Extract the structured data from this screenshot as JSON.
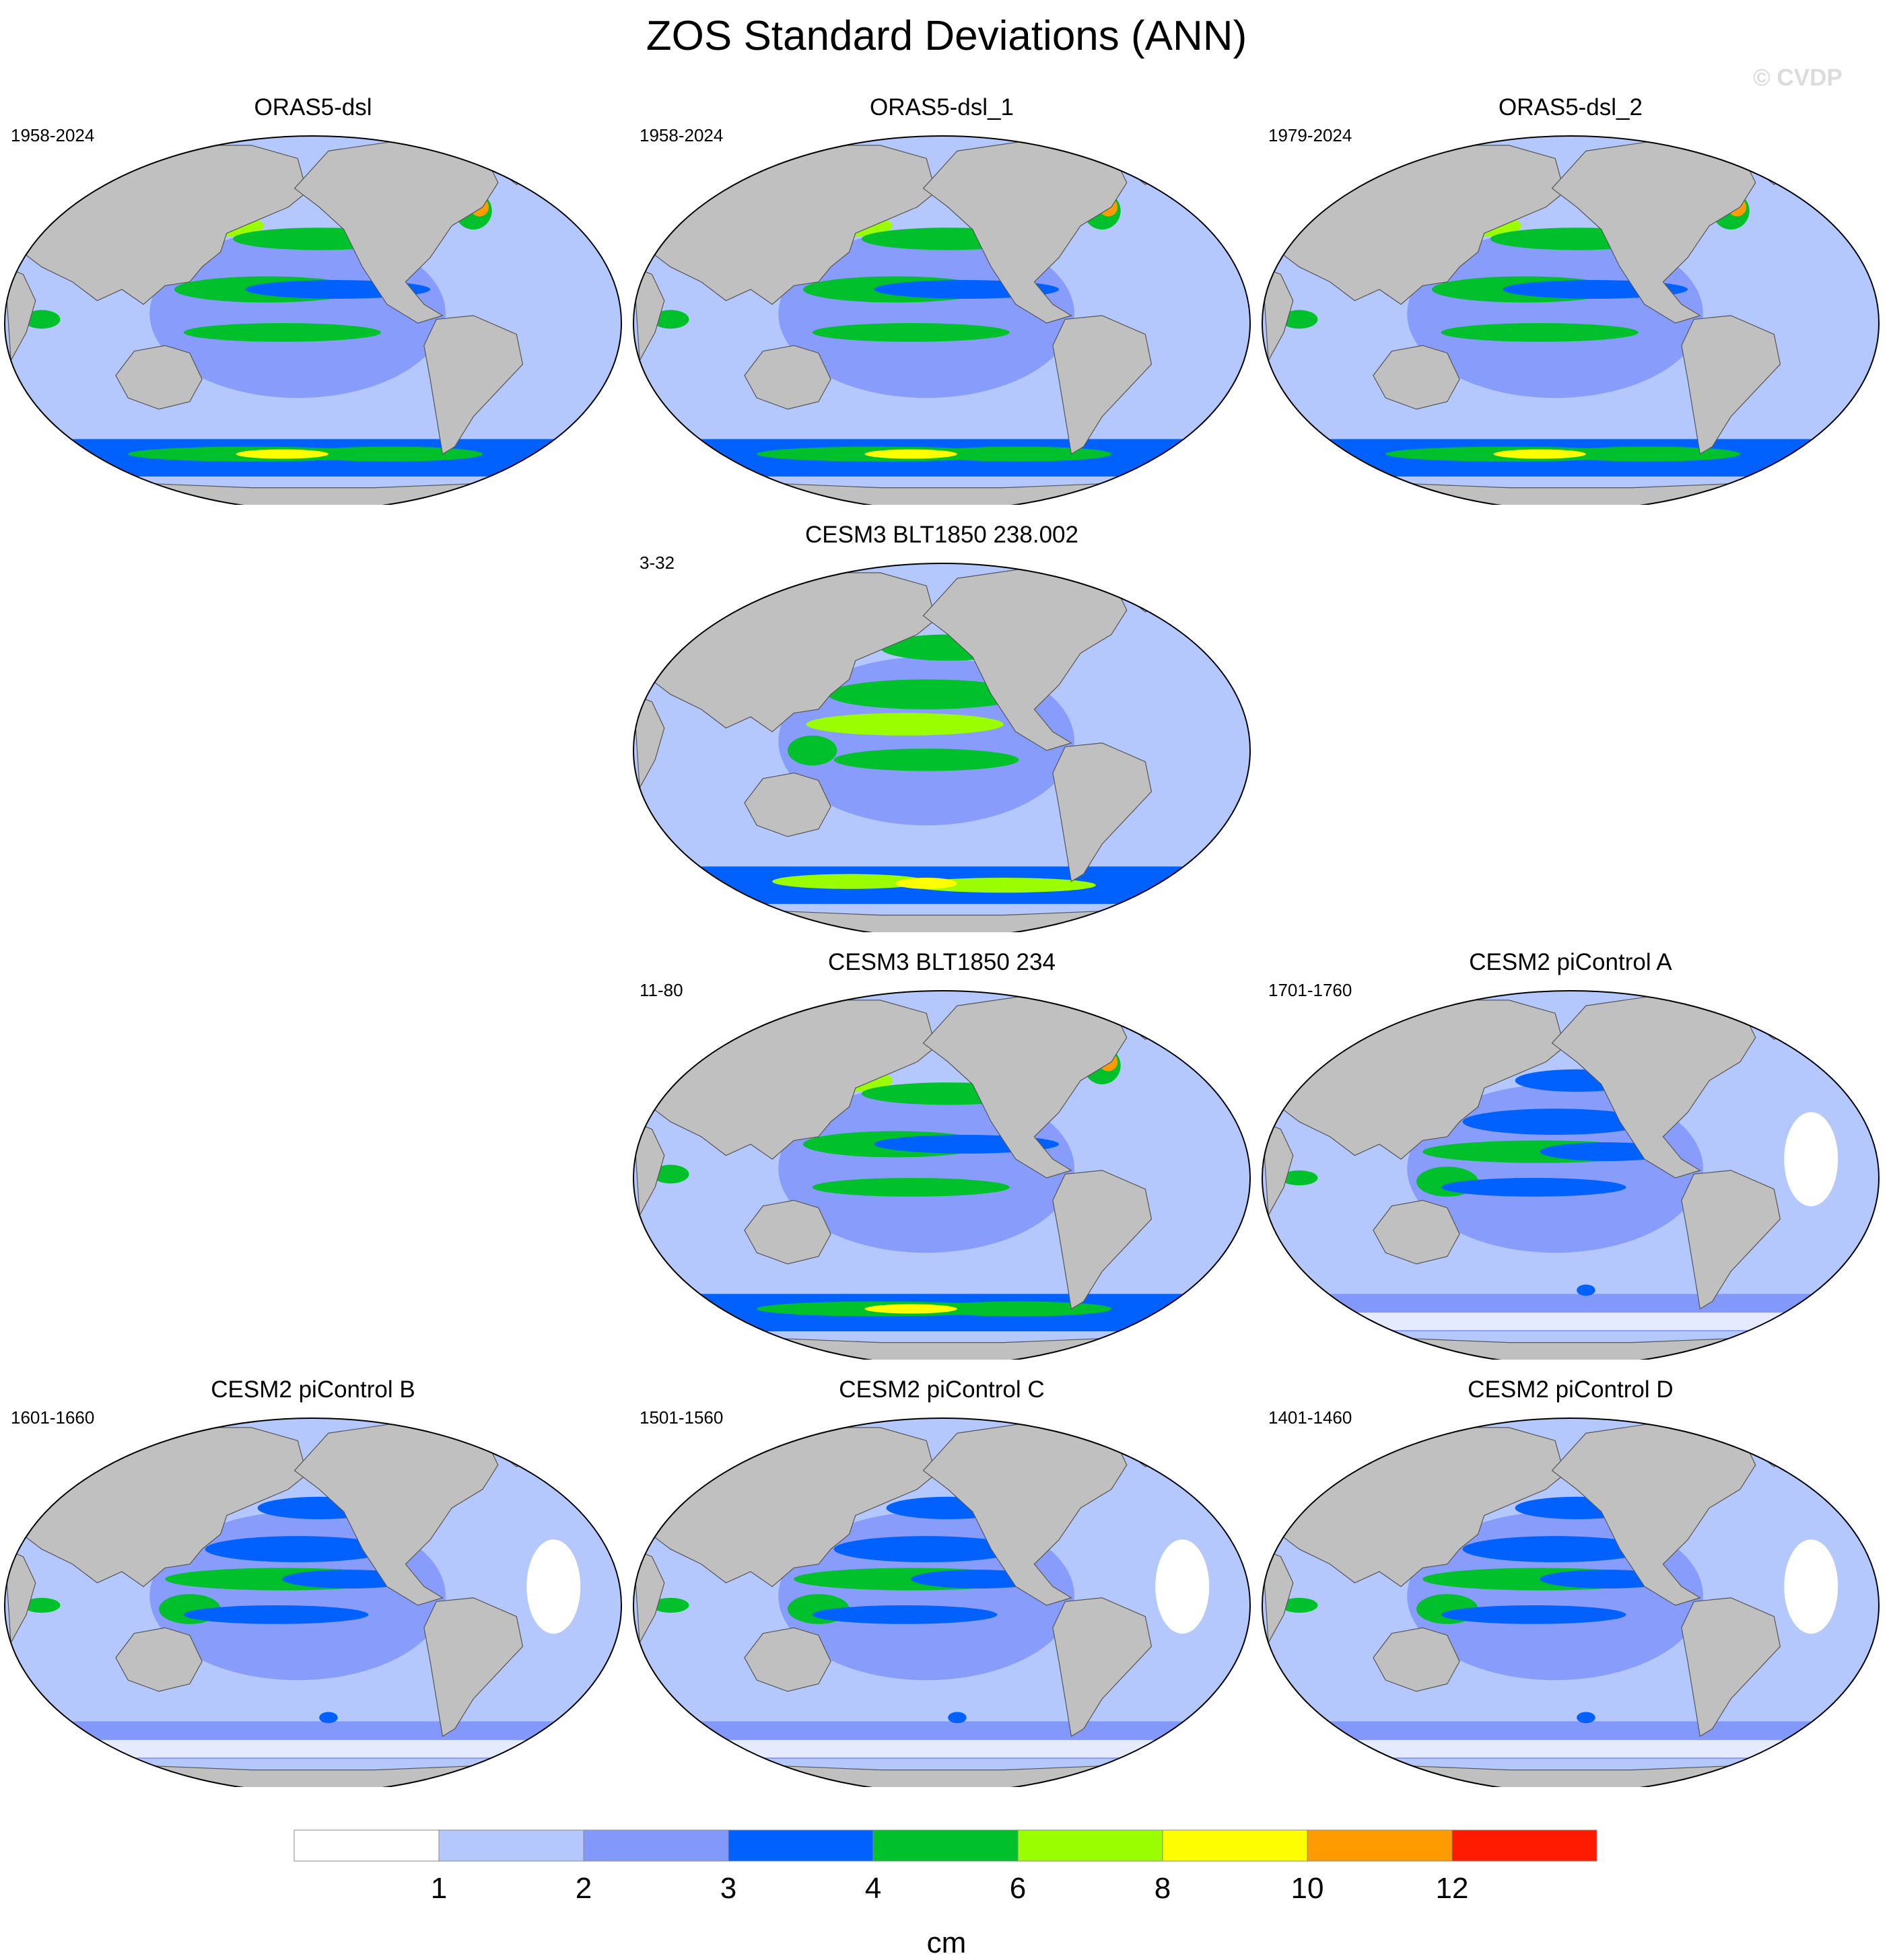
{
  "title": "ZOS Standard Deviations (ANN)",
  "watermark": "© CVDP",
  "panels": [
    {
      "title": "ORAS5-dsl",
      "years": "1958-2024",
      "intensity": 3,
      "wide": true
    },
    {
      "title": "ORAS5-dsl_1",
      "years": "1958-2024",
      "intensity": 3,
      "wide": true
    },
    {
      "title": "ORAS5-dsl_2",
      "years": "1979-2024",
      "intensity": 3,
      "wide": true
    },
    {
      "title": "CESM3 BLT1850 238.002",
      "years": "3-32",
      "intensity": 2,
      "wide": false
    },
    {
      "title": "CESM3 BLT1850 234",
      "years": "11-80",
      "intensity": 3,
      "wide": false
    },
    {
      "title": "CESM2 piControl A",
      "years": "1701-1760",
      "intensity": 1,
      "wide": false
    },
    {
      "title": "CESM2 piControl B",
      "years": "1601-1660",
      "intensity": 1,
      "wide": false
    },
    {
      "title": "CESM2 piControl C",
      "years": "1501-1560",
      "intensity": 1,
      "wide": false
    },
    {
      "title": "CESM2 piControl D",
      "years": "1401-1460",
      "intensity": 1,
      "wide": false
    }
  ],
  "colorbar": {
    "colors": [
      "#ffffff",
      "#b5c8fd",
      "#8398fb",
      "#0061ff",
      "#00c12c",
      "#9afe00",
      "#fefe00",
      "#fe9b00",
      "#fe1b00"
    ],
    "labels": [
      "1",
      "2",
      "3",
      "4",
      "6",
      "8",
      "10",
      "12"
    ],
    "unit": "cm"
  },
  "land_color": "#c0c0c0"
}
